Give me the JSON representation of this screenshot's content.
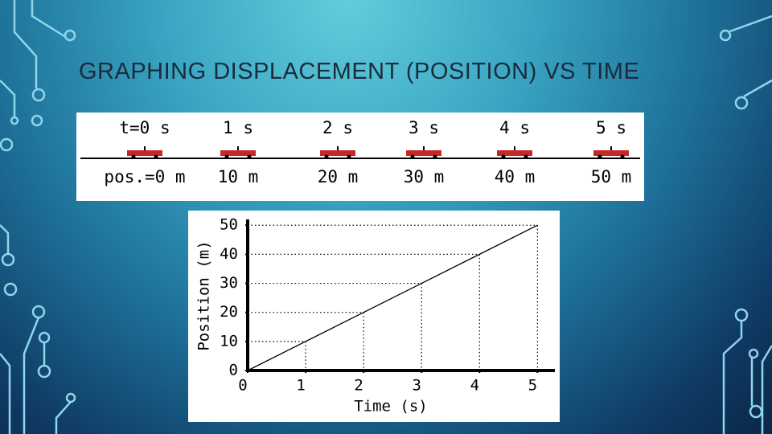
{
  "title": "GRAPHING DISPLACEMENT (POSITION) VS TIME",
  "diagram": {
    "times": [
      "t=0 s",
      "1 s",
      "2 s",
      "3 s",
      "4 s",
      "5 s"
    ],
    "positions": [
      "pos.=0 m",
      "10 m",
      "20 m",
      "30 m",
      "40 m",
      "50 m"
    ]
  },
  "chart_data": {
    "type": "line",
    "x_label": "Time (s)",
    "y_label": "Position (m)",
    "x": [
      0,
      1,
      2,
      3,
      4,
      5
    ],
    "series": [
      {
        "color": "#000000",
        "values": [
          0,
          10,
          20,
          30,
          40,
          50
        ]
      }
    ],
    "xlim": [
      0,
      5.3
    ],
    "ylim": [
      0,
      52
    ],
    "xticks": [
      0,
      1,
      2,
      3,
      4,
      5
    ],
    "yticks": [
      0,
      10,
      20,
      30,
      40,
      50
    ]
  }
}
